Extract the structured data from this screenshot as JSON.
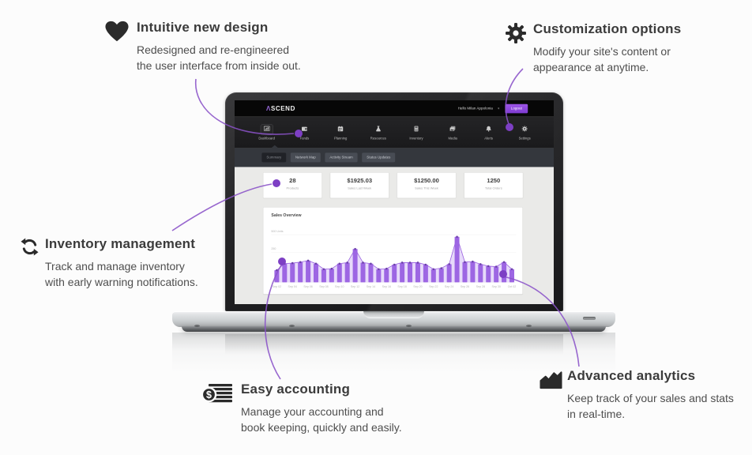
{
  "features": {
    "intuitive": {
      "icon": "heart-icon",
      "title": "Intuitive new design",
      "desc_lines": [
        "Redesigned and re-engineered",
        "the user interface from inside out."
      ]
    },
    "customization": {
      "icon": "gear-icon",
      "title": "Customization options",
      "desc_lines": [
        "Modify your site's content or",
        "appearance at anytime."
      ]
    },
    "inventory": {
      "icon": "refresh-icon",
      "title": "Inventory management",
      "desc_lines": [
        "Track and manage inventory",
        "with early warning notifications."
      ]
    },
    "accounting": {
      "icon": "dollar-ledger-icon",
      "title": "Easy accounting",
      "desc_lines": [
        "Manage your accounting and",
        "book keeping, quickly and easily."
      ]
    },
    "analytics": {
      "icon": "area-chart-icon",
      "title": "Advanced analytics",
      "desc_lines": [
        "Keep track of your sales and stats",
        "in real-time."
      ]
    }
  },
  "dashboard": {
    "brand": {
      "prefix": "Λ",
      "rest": "SCEND"
    },
    "topbar": {
      "greeting": "Hello Milan Appolonia",
      "caret": "▼",
      "logout_label": "Logout"
    },
    "nav": [
      {
        "label": "Dashboard",
        "icon": "bar-chart-icon",
        "active": true
      },
      {
        "label": "Funds",
        "icon": "wallet-icon"
      },
      {
        "label": "Planning",
        "icon": "calendar-icon"
      },
      {
        "label": "Resources",
        "icon": "flask-icon"
      },
      {
        "label": "Inventory",
        "icon": "calculator-icon"
      },
      {
        "label": "Media",
        "icon": "photos-icon"
      },
      {
        "label": "Alerts",
        "icon": "bell-icon"
      },
      {
        "label": "Settings",
        "icon": "gear-icon"
      }
    ],
    "subtabs": [
      {
        "label": "Summary",
        "active": true
      },
      {
        "label": "Network Map"
      },
      {
        "label": "Activity Stream"
      },
      {
        "label": "Status Updates"
      }
    ],
    "stats": [
      {
        "value": "28",
        "label": "Products"
      },
      {
        "value": "$1925.03",
        "label": "Sales Last Week"
      },
      {
        "value": "$1250.00",
        "label": "Sales This Week"
      },
      {
        "value": "1250",
        "label": "Total Orders"
      }
    ]
  },
  "chart_data": {
    "type": "bar",
    "title": "Sales Overview",
    "y_axis_labels": [
      "500 Units",
      "250"
    ],
    "ylim": [
      0,
      500
    ],
    "x_labels": [
      "Sep 02",
      "Sep 04",
      "Sep 06",
      "Sep 08",
      "Sep 10",
      "Sep 12",
      "Sep 14",
      "Sep 16",
      "Sep 18",
      "Sep 20",
      "Sep 22",
      "Sep 24",
      "Sep 26",
      "Sep 28",
      "Sep 30",
      "Oct 02"
    ],
    "x_label_every_n_bars": 2,
    "values": [
      120,
      185,
      190,
      200,
      215,
      185,
      130,
      135,
      185,
      195,
      330,
      195,
      185,
      130,
      135,
      175,
      195,
      195,
      195,
      175,
      130,
      140,
      180,
      450,
      200,
      205,
      180,
      160,
      155,
      200,
      130
    ],
    "bar_color": "#9d66e3",
    "line_color": "#9a61e0",
    "dot_color": "#6b41a8",
    "area_color": "rgba(170,122,238,0.28)",
    "grid": true,
    "legend": false
  },
  "colors": {
    "connector_purple": "#8a52c8",
    "dot_purple": "#7d3fc4",
    "accent_purple": "#8e4fd6"
  }
}
